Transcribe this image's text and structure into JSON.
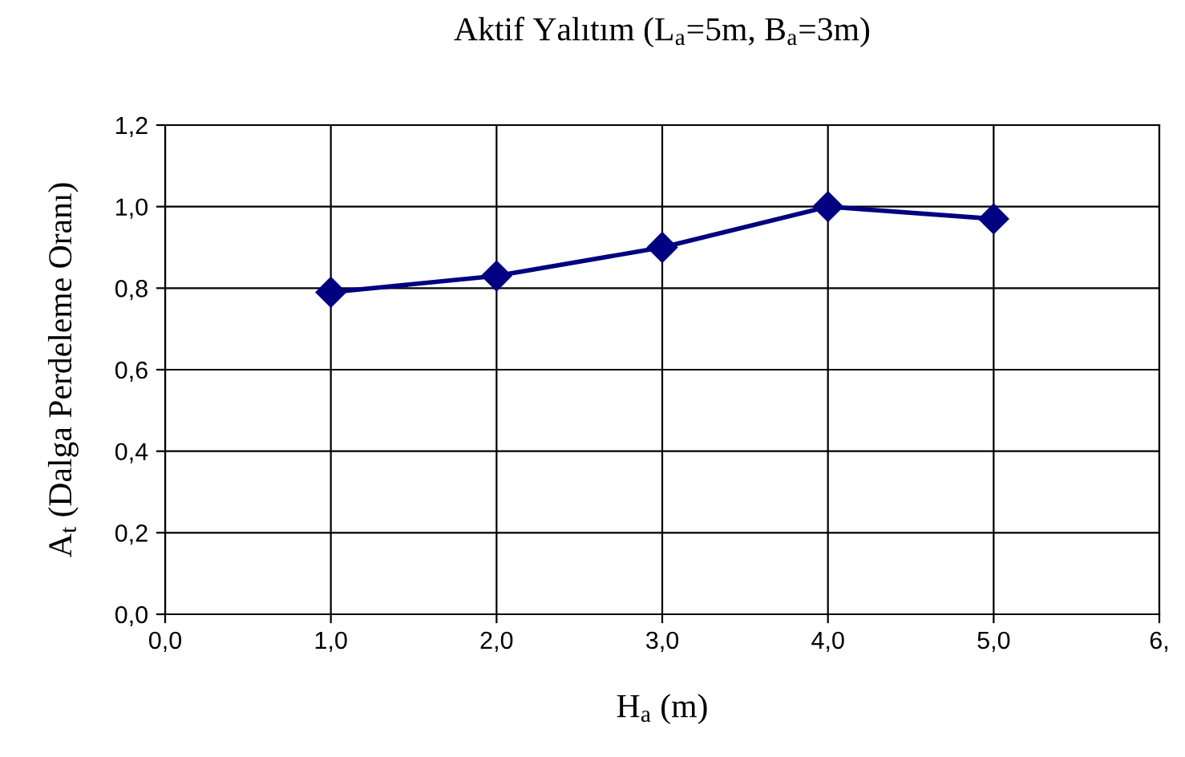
{
  "chart_data": {
    "type": "line",
    "title": "Aktif Yalıtım (L$_{a}$=5m, B$_{a}$=3m)",
    "xlabel": "H$_{a}$ (m)",
    "ylabel": "A$_{t}$ (Dalga Perdeleme Oranı)",
    "x": [
      1,
      2,
      3,
      4,
      5
    ],
    "series": [
      {
        "color": "#000080",
        "values": [
          0.79,
          0.83,
          0.9,
          1.0,
          0.97
        ]
      }
    ],
    "xlim": [
      0,
      6
    ],
    "ylim": [
      0,
      1.2
    ],
    "xticks": [
      {
        "value": 0,
        "label": "0,0"
      },
      {
        "value": 1,
        "label": "1,0"
      },
      {
        "value": 2,
        "label": "2,0"
      },
      {
        "value": 3,
        "label": "3,0"
      },
      {
        "value": 4,
        "label": "4,0"
      },
      {
        "value": 5,
        "label": "5,0"
      },
      {
        "value": 6,
        "label": "6,"
      }
    ],
    "yticks": [
      {
        "value": 0,
        "label": "0,0"
      },
      {
        "value": 0.2,
        "label": "0,2"
      },
      {
        "value": 0.4,
        "label": "0,4"
      },
      {
        "value": 0.6,
        "label": "0,6"
      },
      {
        "value": 0.8,
        "label": "0,8"
      },
      {
        "value": 1.0,
        "label": "1,0"
      },
      {
        "value": 1.2,
        "label": "1,2"
      }
    ],
    "grid": true,
    "marker": "diamond",
    "line_style": "solid"
  }
}
